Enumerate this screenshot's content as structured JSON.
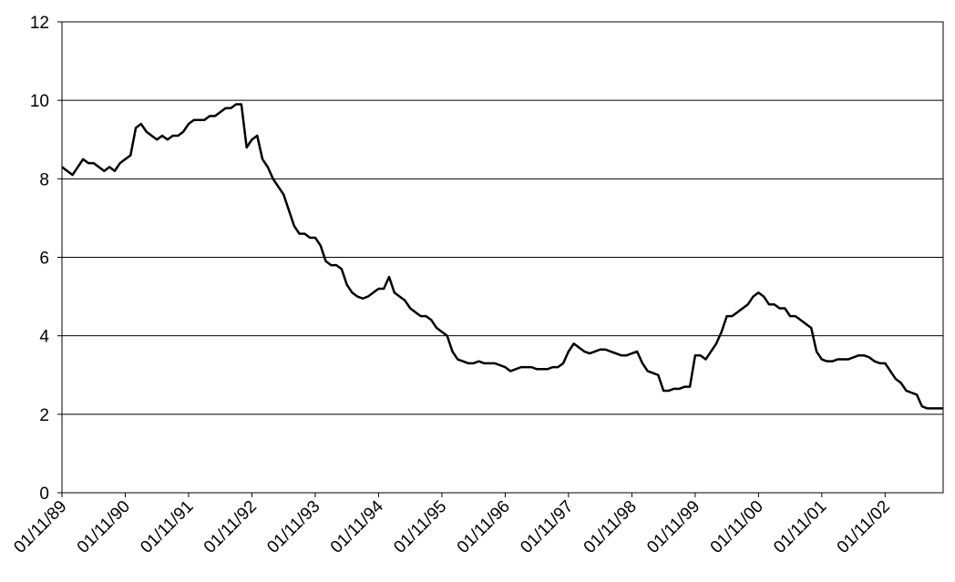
{
  "chart_data": {
    "type": "line",
    "x": [
      0,
      1,
      2,
      3,
      4,
      5,
      6,
      7,
      8,
      9,
      10,
      11,
      12,
      13,
      14,
      15,
      16,
      17,
      18,
      19,
      20,
      21,
      22,
      23,
      24,
      25,
      26,
      27,
      28,
      29,
      30,
      31,
      32,
      33,
      34,
      35,
      36,
      37,
      38,
      39,
      40,
      41,
      42,
      43,
      44,
      45,
      46,
      47,
      48,
      49,
      50,
      51,
      52,
      53,
      54,
      55,
      56,
      57,
      58,
      59,
      60,
      61,
      62,
      63,
      64,
      65,
      66,
      67,
      68,
      69,
      70,
      71,
      72,
      73,
      74,
      75,
      76,
      77,
      78,
      79,
      80,
      81,
      82,
      83,
      84,
      85,
      86,
      87,
      88,
      89,
      90,
      91,
      92,
      93,
      94,
      95,
      96,
      97,
      98,
      99,
      100,
      101,
      102,
      103,
      104,
      105,
      106,
      107,
      108,
      109,
      110,
      111,
      112,
      113,
      114,
      115,
      116,
      117,
      118,
      119,
      120,
      121,
      122,
      123,
      124,
      125,
      126,
      127,
      128,
      129,
      130,
      131,
      132,
      133,
      134,
      135,
      136,
      137,
      138,
      139,
      140,
      141,
      142,
      143,
      144,
      145,
      146,
      147,
      148,
      149,
      150,
      151,
      152,
      153,
      154,
      155,
      156,
      157,
      158,
      159,
      160,
      161,
      162,
      163,
      164,
      165,
      166,
      167
    ],
    "series": [
      {
        "color": "#000000",
        "values": [
          8.3,
          8.2,
          8.1,
          8.3,
          8.5,
          8.4,
          8.4,
          8.3,
          8.2,
          8.3,
          8.2,
          8.4,
          8.5,
          8.6,
          9.3,
          9.4,
          9.2,
          9.1,
          9.0,
          9.1,
          9.0,
          9.1,
          9.1,
          9.2,
          9.4,
          9.5,
          9.5,
          9.5,
          9.6,
          9.6,
          9.7,
          9.8,
          9.8,
          9.9,
          9.9,
          8.8,
          9.0,
          9.1,
          8.5,
          8.3,
          8.0,
          7.8,
          7.6,
          7.2,
          6.8,
          6.6,
          6.6,
          6.5,
          6.5,
          6.3,
          5.9,
          5.8,
          5.8,
          5.7,
          5.3,
          5.1,
          5.0,
          4.95,
          5.0,
          5.1,
          5.2,
          5.2,
          5.5,
          5.1,
          5.0,
          4.9,
          4.7,
          4.6,
          4.5,
          4.5,
          4.4,
          4.2,
          4.1,
          4.0,
          3.6,
          3.4,
          3.35,
          3.3,
          3.3,
          3.35,
          3.3,
          3.3,
          3.3,
          3.25,
          3.2,
          3.1,
          3.15,
          3.2,
          3.2,
          3.2,
          3.15,
          3.15,
          3.15,
          3.2,
          3.2,
          3.3,
          3.6,
          3.8,
          3.7,
          3.6,
          3.55,
          3.6,
          3.65,
          3.65,
          3.6,
          3.55,
          3.5,
          3.5,
          3.55,
          3.6,
          3.3,
          3.1,
          3.05,
          3.0,
          2.6,
          2.6,
          2.65,
          2.65,
          2.7,
          2.7,
          3.5,
          3.5,
          3.4,
          3.6,
          3.8,
          4.1,
          4.5,
          4.5,
          4.6,
          4.7,
          4.8,
          5.0,
          5.1,
          5.0,
          4.8,
          4.8,
          4.7,
          4.7,
          4.5,
          4.5,
          4.4,
          4.3,
          4.2,
          3.6,
          3.4,
          3.35,
          3.35,
          3.4,
          3.4,
          3.4,
          3.45,
          3.5,
          3.5,
          3.45,
          3.35,
          3.3,
          3.3,
          3.1,
          2.9,
          2.8,
          2.6,
          2.55,
          2.5,
          2.2,
          2.15,
          2.15,
          2.15,
          2.15
        ]
      }
    ],
    "xlim": [
      0,
      167
    ],
    "xticks": [
      {
        "value": 0,
        "label": "01/11/89"
      },
      {
        "value": 12,
        "label": "01/11/90"
      },
      {
        "value": 24,
        "label": "01/11/91"
      },
      {
        "value": 36,
        "label": "01/11/92"
      },
      {
        "value": 48,
        "label": "01/11/93"
      },
      {
        "value": 60,
        "label": "01/11/94"
      },
      {
        "value": 72,
        "label": "01/11/95"
      },
      {
        "value": 84,
        "label": "01/11/96"
      },
      {
        "value": 96,
        "label": "01/11/97"
      },
      {
        "value": 108,
        "label": "01/11/98"
      },
      {
        "value": 120,
        "label": "01/11/99"
      },
      {
        "value": 132,
        "label": "01/11/00"
      },
      {
        "value": 144,
        "label": "01/11/01"
      },
      {
        "value": 156,
        "label": "01/11/02"
      }
    ],
    "ylim": [
      0,
      12
    ],
    "yticks": [
      0,
      2,
      4,
      6,
      8,
      10,
      12
    ],
    "grid": true
  }
}
